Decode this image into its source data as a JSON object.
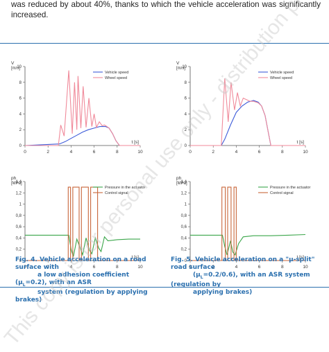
{
  "intro_text": "was reduced by about 40%, thanks to which the vehicle acceleration was significantly increased.",
  "watermark": "This copy is for personal use only - distribution prohibited.",
  "colors": {
    "accent": "#2a6fae",
    "vehicle": "#3d5bd9",
    "wheel": "#f08a9a",
    "pressure": "#3aa64a",
    "control": "#c8663a"
  },
  "figures": [
    {
      "id": "fig4",
      "caption_num": "Fig. 4.",
      "caption_line1": "Vehicle acceleration on a road surface with",
      "caption_line2": "a low adhesion coefficient (μ",
      "caption_line2_sub": "L",
      "caption_line2_end": "=0.2), with an ASR",
      "caption_line3": "system (regulation by applying brakes)"
    },
    {
      "id": "fig5",
      "caption_num": "Fig. 5.",
      "caption_line1": "Vehicle acceleration on a \"μ-split\" road surface",
      "caption_line2": "(μ",
      "caption_line2_sub": "L",
      "caption_line2_end": "=0.2/0.6), with an ASR system (regulation by",
      "caption_line3": "applying brakes)"
    }
  ],
  "chart_data": [
    {
      "type": "line",
      "id": "fig4-speed",
      "ylabel": "V",
      "yunit": "[m/s]",
      "xlabel": "t [s]",
      "xlim": [
        0,
        10
      ],
      "ylim": [
        0,
        10
      ],
      "xticks": [
        "0",
        "2",
        "4",
        "6",
        "8",
        "10"
      ],
      "yticks": [
        "0",
        "2",
        "4",
        "6",
        "8",
        "10"
      ],
      "legend": [
        "Vehicle speed",
        "Wheel speed"
      ],
      "series": [
        {
          "name": "Vehicle speed",
          "x": [
            0,
            3.0,
            3.5,
            4.0,
            4.5,
            5.0,
            5.5,
            6.0,
            6.5,
            7.0,
            7.3,
            7.6,
            7.9,
            8.2,
            10
          ],
          "y": [
            0,
            0.2,
            0.5,
            0.9,
            1.3,
            1.7,
            2.0,
            2.2,
            2.4,
            2.4,
            2.2,
            1.5,
            0.6,
            0,
            0
          ]
        },
        {
          "name": "Wheel speed",
          "x": [
            0,
            2.9,
            3.1,
            3.4,
            3.8,
            4.1,
            4.3,
            4.5,
            4.6,
            4.85,
            5.05,
            5.3,
            5.55,
            5.8,
            6.0,
            6.2,
            6.45,
            6.7,
            6.9,
            7.1,
            7.3,
            7.6,
            7.9,
            8.2,
            10
          ],
          "y": [
            0,
            0,
            2.6,
            1.2,
            9.5,
            1.5,
            8.0,
            2.0,
            8.8,
            2.2,
            7.5,
            2.3,
            6.0,
            2.4,
            4.0,
            2.3,
            3.0,
            2.5,
            2.6,
            2.4,
            2.2,
            1.5,
            0.6,
            0,
            0
          ]
        }
      ]
    },
    {
      "type": "line",
      "id": "fig5-speed",
      "ylabel": "V",
      "yunit": "[m/s]",
      "xlabel": "t [s]",
      "xlim": [
        0,
        10
      ],
      "ylim": [
        0,
        10
      ],
      "xticks": [
        "0",
        "2",
        "4",
        "6",
        "8",
        "10"
      ],
      "yticks": [
        "0",
        "2",
        "4",
        "6",
        "8",
        "10"
      ],
      "legend": [
        "Vehicle speed",
        "Wheel speed"
      ],
      "series": [
        {
          "name": "Vehicle speed",
          "x": [
            0,
            2.7,
            3.0,
            3.5,
            4.0,
            4.5,
            5.0,
            5.5,
            5.9,
            6.2,
            6.5,
            6.8,
            7.0,
            10
          ],
          "y": [
            0,
            0,
            0.8,
            2.6,
            4.2,
            5.0,
            5.5,
            5.7,
            5.5,
            5.0,
            3.8,
            1.5,
            0,
            0
          ]
        },
        {
          "name": "Wheel speed",
          "x": [
            0,
            2.7,
            3.0,
            3.3,
            3.55,
            3.85,
            4.1,
            4.35,
            4.6,
            4.9,
            5.2,
            5.5,
            5.9,
            6.2,
            6.5,
            6.8,
            7.0,
            10
          ],
          "y": [
            0,
            0,
            8.5,
            3.0,
            8.0,
            4.5,
            6.7,
            5.0,
            6.0,
            5.8,
            5.6,
            5.6,
            5.4,
            5.0,
            3.8,
            1.5,
            0,
            0
          ]
        }
      ]
    },
    {
      "type": "line",
      "id": "fig4-pressure",
      "ylabel": "ph",
      "yunit": "[MPa]",
      "xlabel": "t [s]",
      "xlim": [
        0,
        10
      ],
      "ylim": [
        0,
        1.4
      ],
      "xticks": [
        "0",
        "2",
        "4",
        "6",
        "8",
        "10"
      ],
      "yticks": [
        "0",
        "0,2",
        "0,4",
        "0,6",
        "0,8",
        "1",
        "1,2",
        "1,4"
      ],
      "legend": [
        "Pressure in the actuator",
        "Control signal"
      ],
      "series": [
        {
          "name": "Pressure in the actuator",
          "x": [
            0,
            3.8,
            4.0,
            4.2,
            4.5,
            4.8,
            5.0,
            5.3,
            5.6,
            5.8,
            6.1,
            6.4,
            6.6,
            6.9,
            7.2,
            8.0,
            9.0,
            10
          ],
          "y": [
            0.45,
            0.45,
            0.2,
            0.07,
            0.38,
            0.22,
            0.1,
            0.4,
            0.18,
            0.12,
            0.4,
            0.22,
            0.16,
            0.42,
            0.35,
            0.37,
            0.38,
            0.38
          ]
        },
        {
          "name": "Control signal",
          "x": [
            0,
            3.75,
            3.75,
            3.95,
            3.95,
            4.15,
            4.15,
            4.7,
            4.7,
            4.9,
            4.9,
            5.5,
            5.5,
            5.7,
            5.7,
            6.3,
            6.3,
            6.5,
            6.5,
            10
          ],
          "y": [
            0,
            0,
            1.3,
            1.3,
            0,
            0,
            1.3,
            1.3,
            0,
            0,
            1.3,
            1.3,
            0,
            0,
            1.3,
            1.3,
            0,
            0,
            0,
            0
          ]
        }
      ]
    },
    {
      "type": "line",
      "id": "fig5-pressure",
      "ylabel": "ph",
      "yunit": "[MPa]",
      "xlabel": "t [s]",
      "xlim": [
        0,
        10
      ],
      "ylim": [
        0,
        1.4
      ],
      "xticks": [
        "0",
        "2",
        "4",
        "6",
        "8",
        "10"
      ],
      "yticks": [
        "0",
        "0,2",
        "0,4",
        "0,6",
        "0,8",
        "1",
        "1,2",
        "1,4"
      ],
      "legend": [
        "Pressure in the actuator",
        "Control signal"
      ],
      "series": [
        {
          "name": "Pressure in the actuator",
          "x": [
            0,
            2.8,
            3.0,
            3.2,
            3.5,
            3.7,
            3.9,
            4.2,
            4.6,
            5.5,
            7.0,
            8.5,
            10
          ],
          "y": [
            0.45,
            0.45,
            0.25,
            0.1,
            0.35,
            0.15,
            0.1,
            0.3,
            0.42,
            0.44,
            0.44,
            0.45,
            0.46
          ]
        },
        {
          "name": "Control signal",
          "x": [
            0,
            2.75,
            2.75,
            3.05,
            3.05,
            3.25,
            3.25,
            3.55,
            3.55,
            3.8,
            3.8,
            4.0,
            4.0,
            10
          ],
          "y": [
            0,
            0,
            1.3,
            1.3,
            0,
            0,
            1.3,
            1.3,
            0,
            0,
            1.3,
            1.3,
            0,
            0
          ]
        }
      ]
    }
  ]
}
